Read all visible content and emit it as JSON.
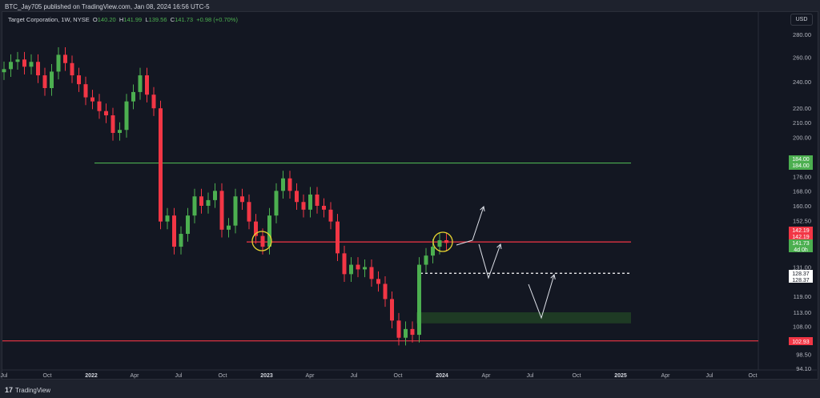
{
  "header": {
    "published": "BTC_Jay705 published on TradingView.com, Jan 08, 2024 16:56 UTC-5"
  },
  "legend": {
    "symbol": "Target Corporation, 1W, NYSE",
    "o_label": "O",
    "o": "140.20",
    "h_label": "H",
    "h": "141.99",
    "l_label": "L",
    "l": "139.56",
    "c_label": "C",
    "c": "141.73",
    "change": "+0.98 (+0.70%)"
  },
  "currency": "USD",
  "footer": {
    "brand": "TradingView"
  },
  "colors": {
    "up": "#4caf50",
    "down": "#f23645",
    "bg": "#131722"
  },
  "chart_data": {
    "type": "candlestick",
    "title": "Target Corporation, 1W, NYSE",
    "x_ticks": [
      "Jul",
      "Oct",
      "2022",
      "Apr",
      "Jul",
      "Oct",
      "2023",
      "Apr",
      "Jul",
      "Oct",
      "2024",
      "Apr",
      "Jul",
      "Oct",
      "2025",
      "Apr",
      "Jul",
      "Oct"
    ],
    "y_ticks": [
      "280.00",
      "260.00",
      "240.00",
      "220.00",
      "210.00",
      "200.00",
      "176.00",
      "168.00",
      "160.00",
      "152.50",
      "131.00",
      "119.00",
      "113.00",
      "108.00",
      "98.50",
      "94.10"
    ],
    "y_scale": "log",
    "ylim": [
      94.1,
      280
    ],
    "closes": [
      250,
      256,
      258,
      252,
      256,
      245,
      235,
      248,
      262,
      255,
      245,
      238,
      228,
      225,
      218,
      215,
      203,
      205,
      225,
      232,
      245,
      230,
      220,
      152,
      155,
      140,
      146,
      155,
      165,
      160,
      163,
      168,
      148,
      150,
      165,
      162,
      152,
      145,
      140,
      155,
      168,
      175,
      168,
      162,
      158,
      166,
      160,
      158,
      152,
      137,
      128,
      132,
      130,
      131,
      126,
      124,
      118,
      110,
      104,
      107,
      105,
      132,
      136,
      140,
      143,
      141.73
    ],
    "price_labels": [
      {
        "text": "184.00",
        "text2": "184.00",
        "value": 184,
        "color": "#4caf50"
      },
      {
        "text": "142.19",
        "text2": "142.19",
        "value": 142.19,
        "color": "#f23645"
      },
      {
        "text": "141.73",
        "text2": "4d 0h",
        "value": 141.73,
        "color": "#4caf50"
      },
      {
        "text": "128.37",
        "text2": "128.37",
        "value": 128.37,
        "color": "#ffffff"
      },
      {
        "text": "102.93",
        "value": 102.93,
        "color": "#f23645"
      }
    ],
    "levels": [
      {
        "name": "resistance-184",
        "value": 184,
        "color": "#4caf50"
      },
      {
        "name": "level-142",
        "value": 142.19,
        "color": "#f23645"
      },
      {
        "name": "support-102",
        "value": 102.93,
        "color": "#f23645"
      },
      {
        "name": "target-128",
        "value": 128.37,
        "color": "#ffffff",
        "dashed": true
      }
    ],
    "zone": {
      "low": 109,
      "high": 113,
      "color": "#1e3a24"
    }
  }
}
